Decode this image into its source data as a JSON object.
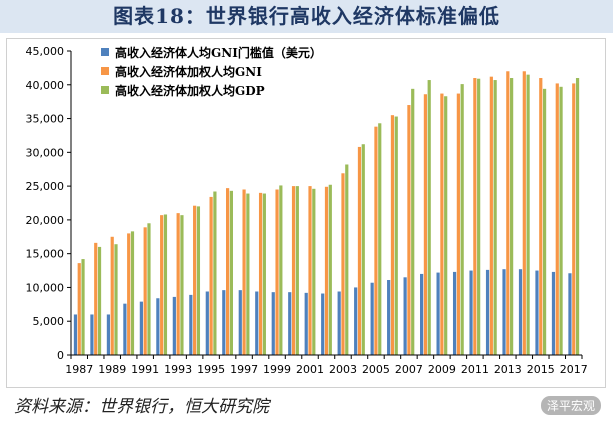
{
  "title": "图表18：世界银行高收入经济体标准偏低",
  "source": "资料来源：世界银行，恒大研究院",
  "watermark": "泽平宏观",
  "chart_data": {
    "type": "bar",
    "ylim": [
      0,
      45000
    ],
    "yticks": [
      "0",
      "5,000",
      "10,000",
      "15,000",
      "20,000",
      "25,000",
      "30,000",
      "35,000",
      "40,000",
      "45,000"
    ],
    "categories": [
      "1987",
      "1988",
      "1989",
      "1990",
      "1991",
      "1992",
      "1993",
      "1994",
      "1995",
      "1996",
      "1997",
      "1998",
      "1999",
      "2000",
      "2001",
      "2002",
      "2003",
      "2004",
      "2005",
      "2006",
      "2007",
      "2008",
      "2009",
      "2010",
      "2011",
      "2012",
      "2013",
      "2014",
      "2015",
      "2016",
      "2017"
    ],
    "xtick_labels": [
      "1987",
      "1989",
      "1991",
      "1993",
      "1995",
      "1997",
      "1999",
      "2001",
      "2003",
      "2005",
      "2007",
      "2009",
      "2011",
      "2013",
      "2015",
      "2017"
    ],
    "series": [
      {
        "name": "高收入经济体人均GNI门槛值（美元）",
        "color": "#4f81bd",
        "values": [
          6000,
          6000,
          6000,
          7600,
          7900,
          8400,
          8600,
          8900,
          9400,
          9600,
          9600,
          9400,
          9300,
          9300,
          9200,
          9100,
          9400,
          10000,
          10700,
          11100,
          11500,
          12000,
          12200,
          12300,
          12500,
          12600,
          12700,
          12700,
          12500,
          12300,
          12100
        ]
      },
      {
        "name": "高收入经济体加权人均GNI",
        "color": "#f79646",
        "values": [
          13600,
          16600,
          17500,
          18000,
          18900,
          20700,
          21000,
          22100,
          23400,
          24700,
          24500,
          24000,
          24500,
          25000,
          25000,
          24900,
          26900,
          30800,
          33800,
          35500,
          37000,
          38600,
          38700,
          38700,
          41000,
          41200,
          42000,
          42000,
          41000,
          40200,
          40200
        ]
      },
      {
        "name": "高收入经济体加权人均GDP",
        "color": "#9bbb59",
        "values": [
          14200,
          16000,
          16400,
          18300,
          19500,
          20800,
          20700,
          22000,
          24200,
          24300,
          23900,
          23900,
          25100,
          25000,
          24600,
          25200,
          28200,
          31200,
          34300,
          35300,
          39400,
          40700,
          38300,
          40100,
          40900,
          40700,
          41000,
          41500,
          39400,
          39700,
          41000
        ]
      }
    ]
  }
}
